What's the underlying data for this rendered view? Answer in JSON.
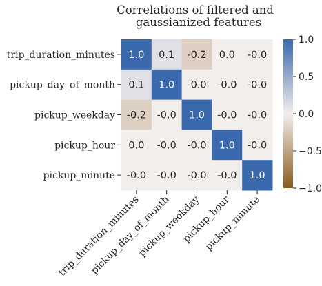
{
  "chart_data": {
    "type": "heatmap",
    "title_lines": [
      "Correlations of filtered and",
      "gaussianized features"
    ],
    "rows": [
      "trip_duration_minutes",
      "pickup_day_of_month",
      "pickup_weekday",
      "pickup_hour",
      "pickup_minute"
    ],
    "columns": [
      "trip_duration_minutes",
      "pickup_day_of_month",
      "pickup_weekday",
      "pickup_hour",
      "pickup_minute"
    ],
    "values": [
      [
        1.0,
        0.1,
        -0.2,
        0.0,
        -0.0
      ],
      [
        0.1,
        1.0,
        -0.0,
        -0.0,
        -0.0
      ],
      [
        -0.2,
        -0.0,
        1.0,
        -0.0,
        -0.0
      ],
      [
        0.0,
        -0.0,
        -0.0,
        1.0,
        -0.0
      ],
      [
        -0.0,
        -0.0,
        -0.0,
        -0.0,
        1.0
      ]
    ],
    "value_labels": [
      [
        "1.0",
        "0.1",
        "-0.2",
        "0.0",
        "-0.0"
      ],
      [
        "0.1",
        "1.0",
        "-0.0",
        "-0.0",
        "-0.0"
      ],
      [
        "-0.2",
        "-0.0",
        "1.0",
        "-0.0",
        "-0.0"
      ],
      [
        "0.0",
        "-0.0",
        "-0.0",
        "1.0",
        "-0.0"
      ],
      [
        "-0.0",
        "-0.0",
        "-0.0",
        "-0.0",
        "1.0"
      ]
    ],
    "colorbar": {
      "min": -1.0,
      "max": 1.0,
      "ticks": [
        1.0,
        0.5,
        0.0,
        -0.5,
        -1.0
      ],
      "tick_labels": [
        "1.0",
        "0.5",
        "0.0",
        "−0.5",
        "−1.0"
      ],
      "colors": {
        "low": "#8b5a1c",
        "mid": "#f2eeec",
        "high": "#3a68ad"
      }
    }
  }
}
